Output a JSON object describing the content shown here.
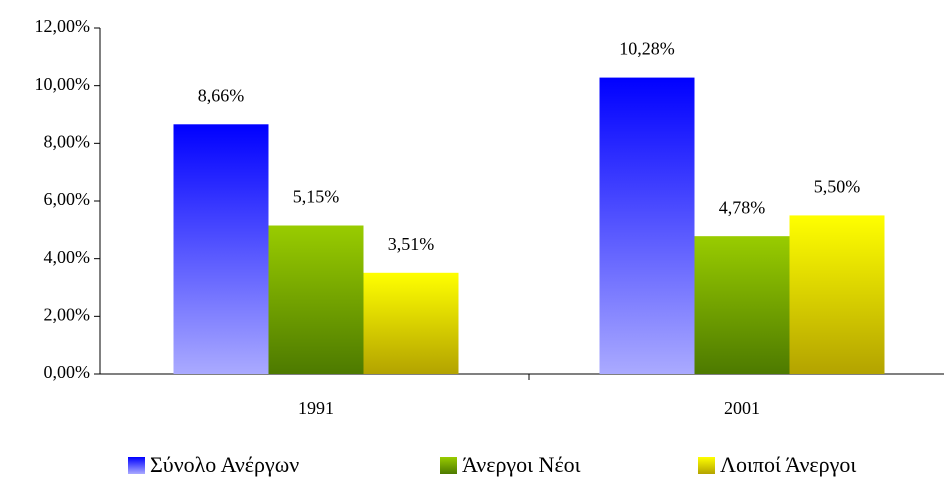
{
  "chart_data": {
    "type": "bar",
    "categories": [
      "1991",
      "2001"
    ],
    "series": [
      {
        "name": "Σύνολο Ανέργων",
        "color": "#0000ff",
        "values": [
          8.66,
          10.28
        ],
        "value_labels": [
          "8,66%",
          "10,28%"
        ]
      },
      {
        "name": "Άνεργοι Νέοι",
        "color": "#99cc00",
        "values": [
          5.15,
          4.78
        ],
        "value_labels": [
          "5,15%",
          "4,78%"
        ]
      },
      {
        "name": "Λοιποί Άνεργοι",
        "color": "#ffff00",
        "values": [
          3.51,
          5.5
        ],
        "value_labels": [
          "3,51%",
          "5,50%"
        ]
      }
    ],
    "ylim": [
      0,
      12
    ],
    "yticks": [
      {
        "value": 0,
        "label": "0,00%"
      },
      {
        "value": 2,
        "label": "2,00%"
      },
      {
        "value": 4,
        "label": "4,00%"
      },
      {
        "value": 6,
        "label": "6,00%"
      },
      {
        "value": 8,
        "label": "8,00%"
      },
      {
        "value": 10,
        "label": "10,00%"
      },
      {
        "value": 12,
        "label": "12,00%"
      }
    ],
    "grid": false,
    "legend": "bottom"
  }
}
